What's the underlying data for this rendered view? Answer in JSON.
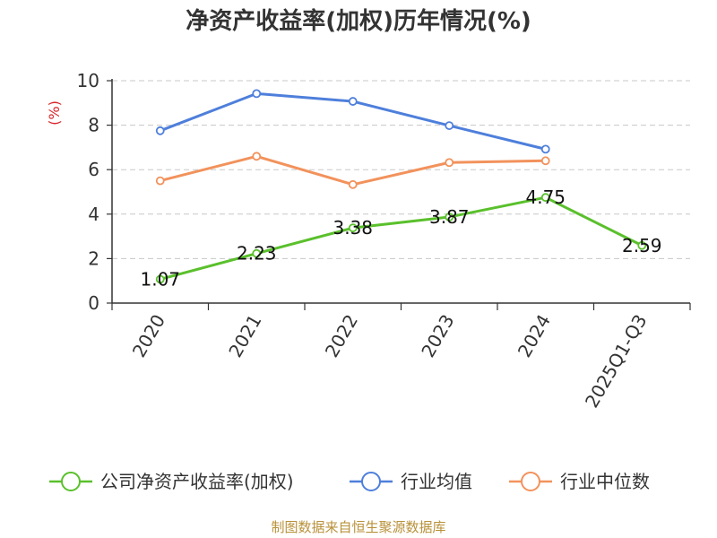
{
  "chart_data": {
    "type": "line",
    "title": "净资产收益率(加权)历年情况(%)",
    "ylabel": "(%)",
    "ylim": [
      0,
      10
    ],
    "yticks": [
      0,
      2,
      4,
      6,
      8,
      10
    ],
    "grid": true,
    "legend_position": "bottom",
    "categories": [
      "2020",
      "2021",
      "2022",
      "2023",
      "2024",
      "2025Q1-Q3"
    ],
    "series": [
      {
        "name": "公司净资产收益率(加权)",
        "color": "#5ac02c",
        "values": [
          1.07,
          2.23,
          3.38,
          3.87,
          4.75,
          2.59
        ],
        "labels": [
          "1.07",
          "2.23",
          "3.38",
          "3.87",
          "4.75",
          "2.59"
        ]
      },
      {
        "name": "行业均值",
        "color": "#4e7fdb",
        "values": [
          7.75,
          9.42,
          9.07,
          7.98,
          6.92,
          null
        ]
      },
      {
        "name": "行业中位数",
        "color": "#f2925c",
        "values": [
          5.5,
          6.6,
          5.33,
          6.32,
          6.4,
          null
        ]
      }
    ],
    "source": "制图数据来自恒生聚源数据库"
  }
}
